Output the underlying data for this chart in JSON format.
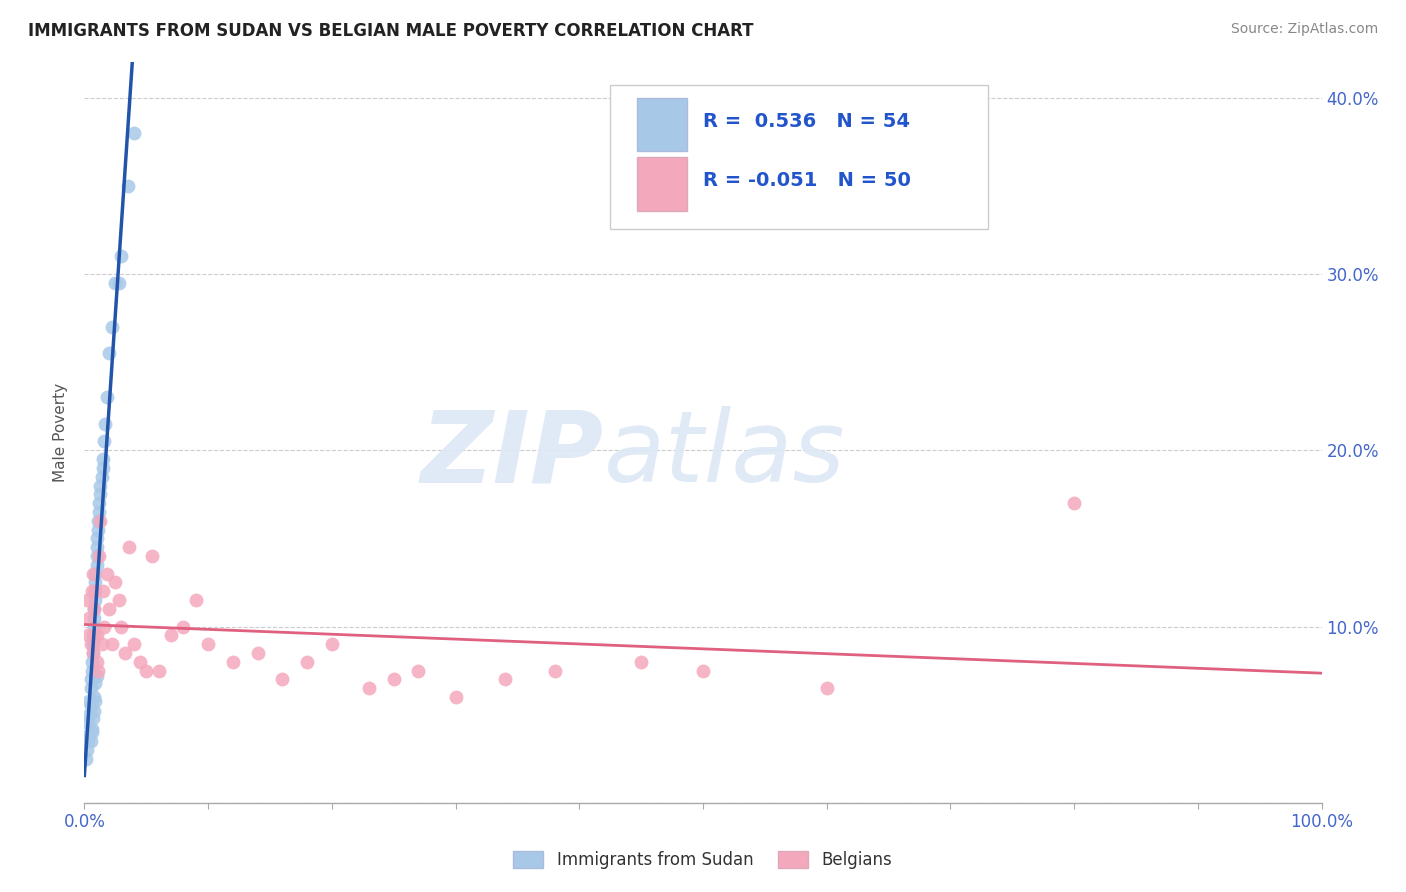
{
  "title": "IMMIGRANTS FROM SUDAN VS BELGIAN MALE POVERTY CORRELATION CHART",
  "source": "Source: ZipAtlas.com",
  "ylabel": "Male Poverty",
  "legend_label_1": "Immigrants from Sudan",
  "legend_label_2": "Belgians",
  "R1": 0.536,
  "N1": 54,
  "R2": -0.051,
  "N2": 50,
  "color_blue": "#a8c8e8",
  "color_pink": "#f4a8bc",
  "line_color_blue": "#2255aa",
  "line_color_pink": "#e06080",
  "xlim": [
    0,
    1.0
  ],
  "ylim": [
    0,
    0.42
  ],
  "background_color": "#ffffff",
  "watermark_zip": "ZIP",
  "watermark_atlas": "atlas",
  "tick_color": "#4466cc",
  "grid_color": "#cccccc",
  "sudan_x": [
    0.001,
    0.002,
    0.002,
    0.003,
    0.003,
    0.004,
    0.004,
    0.005,
    0.005,
    0.005,
    0.006,
    0.006,
    0.007,
    0.007,
    0.007,
    0.008,
    0.008,
    0.008,
    0.009,
    0.009,
    0.009,
    0.009,
    0.01,
    0.01,
    0.01,
    0.01,
    0.011,
    0.011,
    0.012,
    0.012,
    0.013,
    0.013,
    0.014,
    0.015,
    0.015,
    0.016,
    0.017,
    0.018,
    0.02,
    0.022,
    0.025,
    0.028,
    0.03,
    0.035,
    0.04,
    0.008,
    0.009,
    0.01,
    0.006,
    0.007,
    0.008,
    0.009,
    0.005,
    0.006
  ],
  "sudan_y": [
    0.025,
    0.03,
    0.038,
    0.035,
    0.045,
    0.05,
    0.058,
    0.055,
    0.065,
    0.07,
    0.075,
    0.08,
    0.085,
    0.09,
    0.095,
    0.1,
    0.105,
    0.11,
    0.115,
    0.12,
    0.125,
    0.13,
    0.135,
    0.14,
    0.145,
    0.15,
    0.155,
    0.16,
    0.165,
    0.17,
    0.175,
    0.18,
    0.185,
    0.19,
    0.195,
    0.205,
    0.215,
    0.23,
    0.255,
    0.27,
    0.295,
    0.295,
    0.31,
    0.35,
    0.38,
    0.06,
    0.068,
    0.072,
    0.042,
    0.048,
    0.052,
    0.058,
    0.035,
    0.04
  ],
  "belgian_x": [
    0.002,
    0.003,
    0.004,
    0.005,
    0.006,
    0.007,
    0.007,
    0.008,
    0.008,
    0.009,
    0.01,
    0.01,
    0.011,
    0.012,
    0.013,
    0.014,
    0.015,
    0.016,
    0.018,
    0.02,
    0.022,
    0.025,
    0.028,
    0.03,
    0.033,
    0.036,
    0.04,
    0.045,
    0.05,
    0.055,
    0.06,
    0.07,
    0.08,
    0.09,
    0.1,
    0.12,
    0.14,
    0.16,
    0.18,
    0.2,
    0.23,
    0.25,
    0.27,
    0.3,
    0.34,
    0.38,
    0.45,
    0.5,
    0.6,
    0.8
  ],
  "belgian_y": [
    0.115,
    0.095,
    0.105,
    0.09,
    0.12,
    0.13,
    0.085,
    0.095,
    0.11,
    0.12,
    0.08,
    0.095,
    0.075,
    0.14,
    0.16,
    0.09,
    0.12,
    0.1,
    0.13,
    0.11,
    0.09,
    0.125,
    0.115,
    0.1,
    0.085,
    0.145,
    0.09,
    0.08,
    0.075,
    0.14,
    0.075,
    0.095,
    0.1,
    0.115,
    0.09,
    0.08,
    0.085,
    0.07,
    0.08,
    0.09,
    0.065,
    0.07,
    0.075,
    0.06,
    0.07,
    0.075,
    0.08,
    0.075,
    0.065,
    0.17
  ],
  "figsize": [
    14.06,
    8.92
  ],
  "dpi": 100
}
